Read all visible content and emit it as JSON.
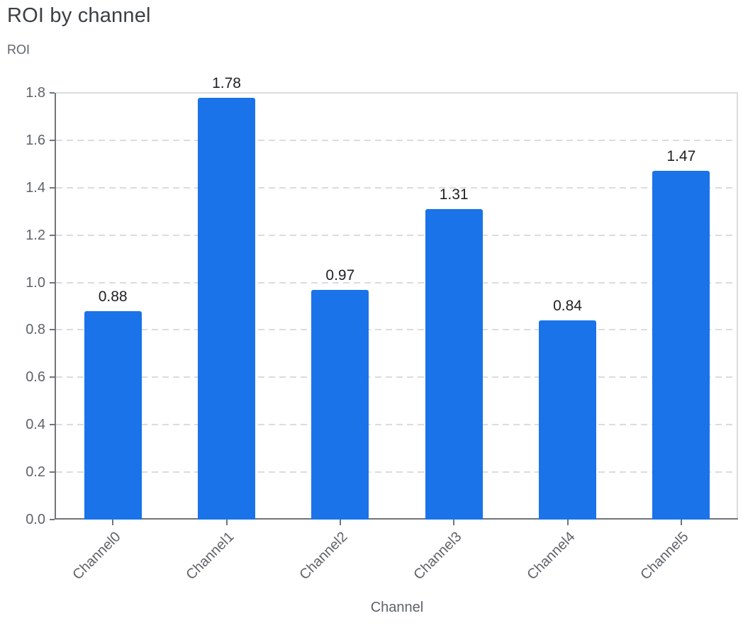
{
  "chart_data": {
    "type": "bar",
    "title": "ROI by channel",
    "ylabel": "ROI",
    "xlabel": "Channel",
    "categories": [
      "Channel0",
      "Channel1",
      "Channel2",
      "Channel3",
      "Channel4",
      "Channel5"
    ],
    "values": [
      0.88,
      1.78,
      0.97,
      1.31,
      0.84,
      1.47
    ],
    "value_labels": [
      "0.88",
      "1.78",
      "0.97",
      "1.31",
      "0.84",
      "1.47"
    ],
    "ytick_labels": [
      "0.0",
      "0.2",
      "0.4",
      "0.6",
      "0.8",
      "1.0",
      "1.2",
      "1.4",
      "1.6",
      "1.8"
    ],
    "ylim": [
      0,
      1.8
    ],
    "grid": "horizontal-dashed",
    "legend": "none",
    "x_label_rotation_deg": 45
  },
  "colors": {
    "bar": "#1a73e8",
    "axis": "#70757a",
    "grid": "#dadce0",
    "title_text": "#3c4043",
    "axis_text": "#5f6368",
    "value_text": "#202124",
    "background": "#ffffff"
  }
}
